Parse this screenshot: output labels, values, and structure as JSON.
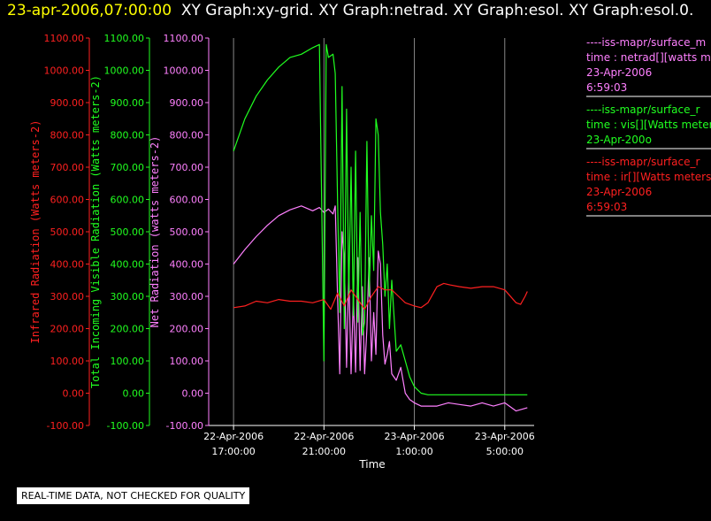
{
  "header": {
    "timestamp": "23-apr-2006,07:00:00",
    "graphs": "XY Graph:xy-grid.  XY Graph:netrad.  XY Graph:esol.  XY Graph:esol.0."
  },
  "notice": "REAL-TIME DATA, NOT CHECKED FOR QUALITY",
  "colors": {
    "ir": "#ff2020",
    "vis": "#20ff20",
    "net": "#ff80ff",
    "axis": "#ffffff",
    "grid": "#888888"
  },
  "chart_data": {
    "type": "line",
    "xlabel": "Time",
    "x_ticks": [
      {
        "line1": "22-Apr-2006",
        "line2": "17:00:00",
        "hours": 17
      },
      {
        "line1": "22-Apr-2006",
        "line2": "21:00:00",
        "hours": 21
      },
      {
        "line1": "23-Apr-2006",
        "line2": "1:00:00",
        "hours": 25
      },
      {
        "line1": "23-Apr-2006",
        "line2": "5:00:00",
        "hours": 29
      }
    ],
    "xlim": [
      15.9,
      30.3
    ],
    "ylim": [
      -100,
      1100
    ],
    "y_ticks": [
      "-100.00",
      "0.00",
      "100.00",
      "200.00",
      "300.00",
      "400.00",
      "500.00",
      "600.00",
      "700.00",
      "800.00",
      "900.00",
      "1000.00",
      "1100.00"
    ],
    "axes": [
      {
        "key": "ir",
        "ylabel": "Infrared Radiation (Watts meters-2)"
      },
      {
        "key": "vis",
        "ylabel": "Total Incoming Visible Radiation (Watts meters-2)"
      },
      {
        "key": "net",
        "ylabel": "Net Radiation (watts meters-2)"
      }
    ],
    "series": [
      {
        "key": "net",
        "x": [
          17.0,
          17.5,
          18.0,
          18.5,
          19.0,
          19.5,
          20.0,
          20.5,
          20.8,
          21.0,
          21.2,
          21.4,
          21.5,
          21.6,
          21.7,
          21.8,
          21.9,
          22.0,
          22.1,
          22.2,
          22.3,
          22.4,
          22.5,
          22.6,
          22.7,
          22.8,
          22.9,
          23.0,
          23.1,
          23.2,
          23.3,
          23.4,
          23.5,
          23.6,
          23.7,
          23.8,
          23.9,
          24.0,
          24.2,
          24.4,
          24.6,
          24.8,
          25.0,
          25.3,
          25.6,
          26.0,
          26.5,
          27.0,
          27.5,
          28.0,
          28.5,
          29.0,
          29.5,
          30.0
        ],
        "y": [
          400,
          445,
          485,
          520,
          550,
          568,
          580,
          565,
          575,
          560,
          570,
          555,
          580,
          300,
          60,
          500,
          420,
          80,
          380,
          60,
          300,
          65,
          420,
          70,
          330,
          60,
          200,
          420,
          100,
          250,
          120,
          440,
          400,
          180,
          90,
          120,
          160,
          60,
          40,
          80,
          0,
          -20,
          -30,
          -40,
          -40,
          -40,
          -30,
          -35,
          -40,
          -30,
          -40,
          -30,
          -55,
          -45
        ]
      },
      {
        "key": "vis",
        "x": [
          17.0,
          17.5,
          18.0,
          18.5,
          19.0,
          19.5,
          20.0,
          20.5,
          20.8,
          21.0,
          21.1,
          21.2,
          21.4,
          21.5,
          21.6,
          21.7,
          21.8,
          21.9,
          22.0,
          22.1,
          22.2,
          22.3,
          22.4,
          22.5,
          22.6,
          22.7,
          22.8,
          22.9,
          23.0,
          23.1,
          23.2,
          23.3,
          23.4,
          23.5,
          23.6,
          23.7,
          23.8,
          23.9,
          24.0,
          24.2,
          24.4,
          24.6,
          24.8,
          25.0,
          25.3,
          25.6,
          26.0,
          26.5,
          27.0,
          27.5,
          28.0,
          28.5,
          29.0,
          29.5,
          30.0
        ],
        "y": [
          750,
          850,
          920,
          970,
          1010,
          1040,
          1050,
          1070,
          1080,
          100,
          1080,
          1040,
          1050,
          990,
          600,
          250,
          950,
          200,
          880,
          300,
          700,
          240,
          750,
          220,
          560,
          180,
          220,
          780,
          300,
          550,
          380,
          850,
          800,
          560,
          460,
          300,
          400,
          200,
          350,
          130,
          150,
          100,
          50,
          20,
          0,
          -5,
          -5,
          -5,
          -5,
          -5,
          -5,
          -5,
          -5,
          -5,
          -5
        ]
      },
      {
        "key": "ir",
        "x": [
          17.0,
          17.5,
          18.0,
          18.5,
          19.0,
          19.5,
          20.0,
          20.5,
          21.0,
          21.3,
          21.6,
          21.9,
          22.2,
          22.5,
          22.8,
          23.1,
          23.4,
          23.7,
          24.0,
          24.3,
          24.6,
          25.0,
          25.3,
          25.6,
          26.0,
          26.3,
          26.6,
          27.0,
          27.5,
          28.0,
          28.5,
          29.0,
          29.5,
          29.7,
          29.9,
          30.0
        ],
        "y": [
          265,
          270,
          285,
          280,
          290,
          285,
          285,
          280,
          290,
          260,
          310,
          270,
          320,
          290,
          260,
          300,
          330,
          320,
          320,
          300,
          280,
          270,
          265,
          280,
          330,
          340,
          335,
          330,
          325,
          330,
          330,
          320,
          280,
          275,
          300,
          315
        ]
      }
    ],
    "legend": [
      {
        "key": "net",
        "lines": [
          "----iss-mapr/surface_m",
          "time : netrad[][watts m",
          "23-Apr-2006",
          "6:59:03"
        ]
      },
      {
        "key": "vis",
        "lines": [
          "----iss-mapr/surface_r",
          "time : vis[][Watts meter",
          "23-Apr-200o"
        ]
      },
      {
        "key": "ir",
        "lines": [
          "----iss-mapr/surface_r",
          "time : ir[][Watts meters",
          "23-Apr-2006",
          "6:59:03"
        ]
      }
    ],
    "grid": true
  }
}
